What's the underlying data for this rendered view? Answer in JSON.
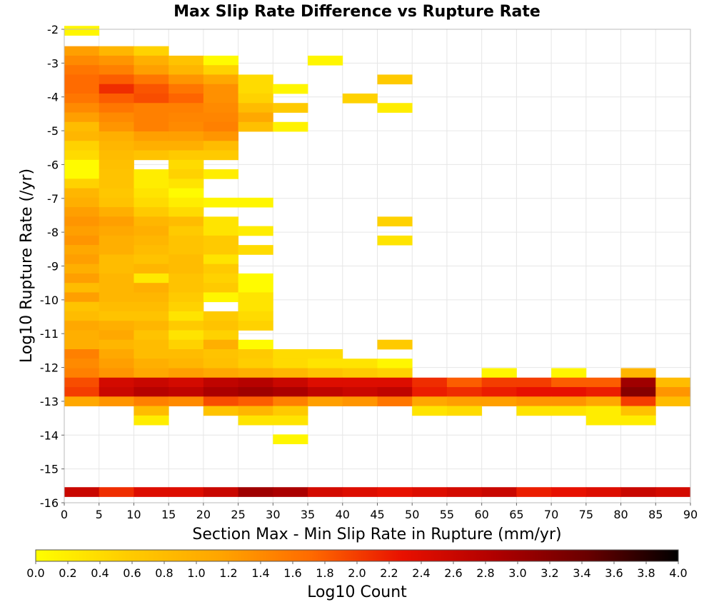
{
  "chart_data": {
    "type": "heatmap",
    "title": "Max Slip Rate Difference vs Rupture Rate",
    "xlabel": "Section Max - Min Slip Rate in Rupture (mm/yr)",
    "ylabel": "Log10 Rupture Rate (/yr)",
    "xlim": [
      0,
      90
    ],
    "ylim": [
      -16,
      -2
    ],
    "x_ticks": [
      "0",
      "5",
      "10",
      "15",
      "20",
      "25",
      "30",
      "35",
      "40",
      "45",
      "50",
      "55",
      "60",
      "65",
      "70",
      "75",
      "80",
      "85",
      "90"
    ],
    "y_ticks": [
      "-2",
      "-3",
      "-4",
      "-5",
      "-6",
      "-7",
      "-8",
      "-9",
      "-10",
      "-11",
      "-12",
      "-13",
      "-14",
      "-15",
      "-16"
    ],
    "x_bin_width": 5,
    "y_bin_height": 0.28,
    "grid": true,
    "colorscale": {
      "label": "Log10 Count",
      "min": 0.0,
      "max": 4.0,
      "ticks": [
        "0.0",
        "0.2",
        "0.4",
        "0.6",
        "0.8",
        "1.0",
        "1.2",
        "1.4",
        "1.6",
        "1.8",
        "2.0",
        "2.2",
        "2.4",
        "2.6",
        "2.8",
        "3.0",
        "3.2",
        "3.4",
        "3.6",
        "3.8",
        "4.0"
      ],
      "colors": [
        "#ffff00",
        "#ffcc00",
        "#ffa500",
        "#ff6a00",
        "#e81000",
        "#b00000",
        "#6a0000",
        "#000000"
      ]
    },
    "cells": [
      [
        0,
        -2.18,
        0.1
      ],
      [
        0,
        -2.78,
        1.2
      ],
      [
        5,
        -2.78,
        0.9
      ],
      [
        10,
        -2.78,
        0.5
      ],
      [
        0,
        -3.06,
        1.4
      ],
      [
        5,
        -3.06,
        1.3
      ],
      [
        10,
        -3.06,
        1.0
      ],
      [
        15,
        -3.06,
        0.7
      ],
      [
        20,
        -3.06,
        0.05
      ],
      [
        35,
        -3.06,
        0.1
      ],
      [
        0,
        -3.34,
        1.6
      ],
      [
        5,
        -3.34,
        1.5
      ],
      [
        10,
        -3.34,
        1.2
      ],
      [
        15,
        -3.34,
        0.9
      ],
      [
        20,
        -3.34,
        0.5
      ],
      [
        0,
        -3.62,
        1.7
      ],
      [
        5,
        -3.62,
        1.8
      ],
      [
        10,
        -3.62,
        1.6
      ],
      [
        15,
        -3.62,
        1.3
      ],
      [
        20,
        -3.62,
        1.1
      ],
      [
        25,
        -3.62,
        0.4
      ],
      [
        45,
        -3.62,
        0.6
      ],
      [
        0,
        -3.9,
        1.7
      ],
      [
        5,
        -3.9,
        2.1
      ],
      [
        10,
        -3.9,
        1.85
      ],
      [
        15,
        -3.9,
        1.6
      ],
      [
        20,
        -3.9,
        1.35
      ],
      [
        25,
        -3.9,
        0.4
      ],
      [
        30,
        -3.9,
        0.1
      ],
      [
        0,
        -4.18,
        1.6
      ],
      [
        5,
        -4.18,
        1.8
      ],
      [
        10,
        -4.18,
        1.9
      ],
      [
        15,
        -4.18,
        1.75
      ],
      [
        20,
        -4.18,
        1.35
      ],
      [
        25,
        -4.18,
        0.5
      ],
      [
        40,
        -4.18,
        0.5
      ],
      [
        0,
        -4.46,
        1.4
      ],
      [
        5,
        -4.46,
        1.6
      ],
      [
        10,
        -4.46,
        1.5
      ],
      [
        15,
        -4.46,
        1.5
      ],
      [
        20,
        -4.46,
        1.4
      ],
      [
        25,
        -4.46,
        0.8
      ],
      [
        30,
        -4.46,
        0.6
      ],
      [
        45,
        -4.46,
        0.2
      ],
      [
        0,
        -4.74,
        1.2
      ],
      [
        5,
        -4.74,
        1.4
      ],
      [
        10,
        -4.74,
        1.5
      ],
      [
        15,
        -4.74,
        1.45
      ],
      [
        20,
        -4.74,
        1.45
      ],
      [
        25,
        -4.74,
        1.1
      ],
      [
        0,
        -5.02,
        0.8
      ],
      [
        5,
        -5.02,
        1.3
      ],
      [
        10,
        -5.02,
        1.5
      ],
      [
        15,
        -5.02,
        1.4
      ],
      [
        20,
        -5.02,
        1.5
      ],
      [
        25,
        -5.02,
        0.75
      ],
      [
        30,
        -5.02,
        0.15
      ],
      [
        0,
        -5.3,
        0.9
      ],
      [
        5,
        -5.3,
        1.0
      ],
      [
        10,
        -5.3,
        1.2
      ],
      [
        15,
        -5.3,
        1.2
      ],
      [
        20,
        -5.3,
        1.3
      ],
      [
        0,
        -5.58,
        0.5
      ],
      [
        5,
        -5.58,
        0.9
      ],
      [
        10,
        -5.58,
        1.0
      ],
      [
        15,
        -5.58,
        1.0
      ],
      [
        20,
        -5.58,
        0.8
      ],
      [
        0,
        -5.86,
        0.4
      ],
      [
        5,
        -5.86,
        0.8
      ],
      [
        10,
        -5.86,
        0.7
      ],
      [
        15,
        -5.86,
        0.6
      ],
      [
        20,
        -5.86,
        0.6
      ],
      [
        0,
        -6.14,
        0.05
      ],
      [
        5,
        -6.14,
        0.75
      ],
      [
        15,
        -6.14,
        0.4
      ],
      [
        0,
        -6.42,
        0.05
      ],
      [
        5,
        -6.42,
        0.7
      ],
      [
        10,
        -6.42,
        0.2
      ],
      [
        15,
        -6.42,
        0.5
      ],
      [
        20,
        -6.42,
        0.2
      ],
      [
        0,
        -6.7,
        0.5
      ],
      [
        5,
        -6.7,
        0.7
      ],
      [
        10,
        -6.7,
        0.2
      ],
      [
        15,
        -6.7,
        0.3
      ],
      [
        0,
        -6.98,
        0.9
      ],
      [
        5,
        -6.98,
        0.65
      ],
      [
        10,
        -6.98,
        0.3
      ],
      [
        15,
        -6.98,
        0.05
      ],
      [
        0,
        -7.26,
        1.0
      ],
      [
        5,
        -7.26,
        0.7
      ],
      [
        10,
        -7.26,
        0.4
      ],
      [
        15,
        -7.26,
        0.2
      ],
      [
        20,
        -7.26,
        0.1
      ],
      [
        25,
        -7.26,
        0.1
      ],
      [
        0,
        -7.54,
        1.2
      ],
      [
        5,
        -7.54,
        1.0
      ],
      [
        10,
        -7.54,
        0.6
      ],
      [
        15,
        -7.54,
        0.4
      ],
      [
        0,
        -7.82,
        1.3
      ],
      [
        5,
        -7.82,
        1.2
      ],
      [
        10,
        -7.82,
        0.9
      ],
      [
        15,
        -7.82,
        0.8
      ],
      [
        20,
        -7.82,
        0.3
      ],
      [
        45,
        -7.82,
        0.5
      ],
      [
        0,
        -8.1,
        1.2
      ],
      [
        5,
        -8.1,
        1.1
      ],
      [
        10,
        -8.1,
        1.0
      ],
      [
        15,
        -8.1,
        0.6
      ],
      [
        20,
        -8.1,
        0.3
      ],
      [
        25,
        -8.1,
        0.2
      ],
      [
        0,
        -8.38,
        1.3
      ],
      [
        5,
        -8.38,
        1.0
      ],
      [
        10,
        -8.38,
        0.9
      ],
      [
        15,
        -8.38,
        0.7
      ],
      [
        20,
        -8.38,
        0.6
      ],
      [
        45,
        -8.38,
        0.3
      ],
      [
        0,
        -8.66,
        1.1
      ],
      [
        5,
        -8.66,
        1.0
      ],
      [
        10,
        -8.66,
        0.8
      ],
      [
        15,
        -8.66,
        0.7
      ],
      [
        20,
        -8.66,
        0.6
      ],
      [
        25,
        -8.66,
        0.4
      ],
      [
        0,
        -8.94,
        1.2
      ],
      [
        5,
        -8.94,
        0.8
      ],
      [
        10,
        -8.94,
        0.7
      ],
      [
        15,
        -8.94,
        0.8
      ],
      [
        20,
        -8.94,
        0.3
      ],
      [
        0,
        -9.22,
        1.0
      ],
      [
        5,
        -9.22,
        0.8
      ],
      [
        10,
        -9.22,
        0.9
      ],
      [
        15,
        -9.22,
        0.8
      ],
      [
        20,
        -9.22,
        0.6
      ],
      [
        0,
        -9.5,
        1.2
      ],
      [
        5,
        -9.5,
        0.9
      ],
      [
        10,
        -9.5,
        0.25
      ],
      [
        15,
        -9.5,
        0.7
      ],
      [
        20,
        -9.5,
        0.5
      ],
      [
        25,
        -9.5,
        0.05
      ],
      [
        0,
        -9.78,
        0.8
      ],
      [
        5,
        -9.78,
        0.9
      ],
      [
        10,
        -9.78,
        1.0
      ],
      [
        15,
        -9.78,
        0.7
      ],
      [
        20,
        -9.78,
        0.6
      ],
      [
        25,
        -9.78,
        0.05
      ],
      [
        0,
        -10.06,
        1.2
      ],
      [
        5,
        -10.06,
        0.9
      ],
      [
        10,
        -10.06,
        0.9
      ],
      [
        15,
        -10.06,
        0.6
      ],
      [
        20,
        -10.06,
        0.1
      ],
      [
        25,
        -10.06,
        0.3
      ],
      [
        0,
        -10.34,
        0.7
      ],
      [
        5,
        -10.34,
        0.8
      ],
      [
        10,
        -10.34,
        0.8
      ],
      [
        15,
        -10.34,
        0.5
      ],
      [
        25,
        -10.34,
        0.3
      ],
      [
        0,
        -10.62,
        0.8
      ],
      [
        5,
        -10.62,
        0.7
      ],
      [
        10,
        -10.62,
        0.7
      ],
      [
        15,
        -10.62,
        0.3
      ],
      [
        20,
        -10.62,
        0.6
      ],
      [
        25,
        -10.62,
        0.4
      ],
      [
        0,
        -10.9,
        1.1
      ],
      [
        5,
        -10.9,
        1.0
      ],
      [
        10,
        -10.9,
        0.9
      ],
      [
        15,
        -10.9,
        0.6
      ],
      [
        20,
        -10.9,
        0.7
      ],
      [
        25,
        -10.9,
        0.5
      ],
      [
        0,
        -11.18,
        1.0
      ],
      [
        5,
        -11.18,
        1.1
      ],
      [
        10,
        -11.18,
        0.7
      ],
      [
        15,
        -11.18,
        0.3
      ],
      [
        20,
        -11.18,
        0.5
      ],
      [
        0,
        -11.46,
        1.0
      ],
      [
        5,
        -11.46,
        0.9
      ],
      [
        10,
        -11.46,
        0.8
      ],
      [
        15,
        -11.46,
        0.5
      ],
      [
        20,
        -11.46,
        1.0
      ],
      [
        25,
        -11.46,
        0.05
      ],
      [
        45,
        -11.46,
        0.6
      ],
      [
        0,
        -11.74,
        1.5
      ],
      [
        5,
        -11.74,
        1.1
      ],
      [
        10,
        -11.74,
        0.8
      ],
      [
        15,
        -11.74,
        0.8
      ],
      [
        20,
        -11.74,
        0.7
      ],
      [
        25,
        -11.74,
        0.6
      ],
      [
        30,
        -11.74,
        0.4
      ],
      [
        35,
        -11.74,
        0.4
      ],
      [
        0,
        -12.02,
        1.4
      ],
      [
        5,
        -12.02,
        1.2
      ],
      [
        10,
        -12.02,
        1.0
      ],
      [
        15,
        -12.02,
        0.9
      ],
      [
        20,
        -12.02,
        0.75
      ],
      [
        25,
        -12.02,
        0.55
      ],
      [
        30,
        -12.02,
        0.4
      ],
      [
        35,
        -12.02,
        0.3
      ],
      [
        40,
        -12.02,
        0.3
      ],
      [
        45,
        -12.02,
        0.1
      ],
      [
        0,
        -12.3,
        1.5
      ],
      [
        5,
        -12.3,
        1.3
      ],
      [
        10,
        -12.3,
        1.1
      ],
      [
        15,
        -12.3,
        1.2
      ],
      [
        20,
        -12.3,
        1.1
      ],
      [
        25,
        -12.3,
        1.0
      ],
      [
        30,
        -12.3,
        0.9
      ],
      [
        35,
        -12.3,
        0.7
      ],
      [
        40,
        -12.3,
        0.6
      ],
      [
        45,
        -12.3,
        0.5
      ],
      [
        60,
        -12.3,
        0.1
      ],
      [
        70,
        -12.3,
        0.1
      ],
      [
        80,
        -12.3,
        0.9
      ],
      [
        0,
        -12.58,
        1.9
      ],
      [
        5,
        -12.58,
        2.5
      ],
      [
        10,
        -12.58,
        2.6
      ],
      [
        15,
        -12.58,
        2.5
      ],
      [
        20,
        -12.58,
        2.7
      ],
      [
        25,
        -12.58,
        2.8
      ],
      [
        30,
        -12.58,
        2.6
      ],
      [
        35,
        -12.58,
        2.4
      ],
      [
        40,
        -12.58,
        2.4
      ],
      [
        45,
        -12.58,
        2.4
      ],
      [
        50,
        -12.58,
        2.1
      ],
      [
        55,
        -12.58,
        1.8
      ],
      [
        60,
        -12.58,
        2.0
      ],
      [
        65,
        -12.58,
        2.0
      ],
      [
        70,
        -12.58,
        1.8
      ],
      [
        75,
        -12.58,
        1.8
      ],
      [
        80,
        -12.58,
        3.0
      ],
      [
        85,
        -12.58,
        0.8
      ],
      [
        0,
        -12.86,
        2.0
      ],
      [
        5,
        -12.86,
        2.6
      ],
      [
        10,
        -12.86,
        2.8
      ],
      [
        15,
        -12.86,
        2.7
      ],
      [
        20,
        -12.86,
        2.9
      ],
      [
        25,
        -12.86,
        3.0
      ],
      [
        30,
        -12.86,
        2.9
      ],
      [
        35,
        -12.86,
        2.7
      ],
      [
        40,
        -12.86,
        2.6
      ],
      [
        45,
        -12.86,
        2.7
      ],
      [
        50,
        -12.86,
        2.2
      ],
      [
        55,
        -12.86,
        2.1
      ],
      [
        60,
        -12.86,
        2.2
      ],
      [
        65,
        -12.86,
        2.3
      ],
      [
        70,
        -12.86,
        2.3
      ],
      [
        75,
        -12.86,
        2.2
      ],
      [
        80,
        -12.86,
        3.2
      ],
      [
        85,
        -12.86,
        1.3
      ],
      [
        0,
        -13.14,
        1.1
      ],
      [
        5,
        -13.14,
        1.3
      ],
      [
        10,
        -13.14,
        1.5
      ],
      [
        15,
        -13.14,
        1.4
      ],
      [
        20,
        -13.14,
        1.9
      ],
      [
        25,
        -13.14,
        1.8
      ],
      [
        30,
        -13.14,
        1.5
      ],
      [
        35,
        -13.14,
        1.2
      ],
      [
        40,
        -13.14,
        1.3
      ],
      [
        45,
        -13.14,
        1.6
      ],
      [
        50,
        -13.14,
        1.1
      ],
      [
        55,
        -13.14,
        1.2
      ],
      [
        60,
        -13.14,
        1.2
      ],
      [
        65,
        -13.14,
        1.3
      ],
      [
        70,
        -13.14,
        1.3
      ],
      [
        75,
        -13.14,
        1.1
      ],
      [
        80,
        -13.14,
        2.0
      ],
      [
        85,
        -13.14,
        0.8
      ],
      [
        10,
        -13.42,
        0.8
      ],
      [
        20,
        -13.42,
        0.7
      ],
      [
        25,
        -13.42,
        0.9
      ],
      [
        30,
        -13.42,
        0.6
      ],
      [
        50,
        -13.42,
        0.3
      ],
      [
        55,
        -13.42,
        0.4
      ],
      [
        65,
        -13.42,
        0.3
      ],
      [
        70,
        -13.42,
        0.3
      ],
      [
        75,
        -13.42,
        0.2
      ],
      [
        80,
        -13.42,
        0.7
      ],
      [
        10,
        -13.7,
        0.2
      ],
      [
        25,
        -13.7,
        0.3
      ],
      [
        30,
        -13.7,
        0.3
      ],
      [
        75,
        -13.7,
        0.2
      ],
      [
        80,
        -13.7,
        0.2
      ],
      [
        30,
        -14.26,
        0.1
      ],
      [
        0,
        -15.82,
        2.6
      ],
      [
        5,
        -15.82,
        2.1
      ],
      [
        10,
        -15.82,
        2.4
      ],
      [
        15,
        -15.82,
        2.4
      ],
      [
        20,
        -15.82,
        2.6
      ],
      [
        25,
        -15.82,
        3.0
      ],
      [
        30,
        -15.82,
        2.9
      ],
      [
        35,
        -15.82,
        2.5
      ],
      [
        40,
        -15.82,
        2.4
      ],
      [
        45,
        -15.82,
        2.3
      ],
      [
        50,
        -15.82,
        2.4
      ],
      [
        55,
        -15.82,
        2.5
      ],
      [
        60,
        -15.82,
        2.6
      ],
      [
        65,
        -15.82,
        2.2
      ],
      [
        70,
        -15.82,
        2.3
      ],
      [
        75,
        -15.82,
        2.4
      ],
      [
        80,
        -15.82,
        2.6
      ],
      [
        85,
        -15.82,
        2.5
      ]
    ]
  }
}
